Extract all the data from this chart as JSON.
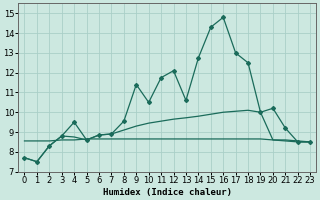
{
  "xlabel": "Humidex (Indice chaleur)",
  "bg_color": "#cce8e0",
  "grid_color": "#aacfc8",
  "line_color": "#1a6b5a",
  "xlim": [
    -0.5,
    23.5
  ],
  "ylim": [
    7,
    15.5
  ],
  "yticks": [
    7,
    8,
    9,
    10,
    11,
    12,
    13,
    14,
    15
  ],
  "xticks": [
    0,
    1,
    2,
    3,
    4,
    5,
    6,
    7,
    8,
    9,
    10,
    11,
    12,
    13,
    14,
    15,
    16,
    17,
    18,
    19,
    20,
    21,
    22,
    23
  ],
  "line1_x": [
    0,
    1,
    2,
    3,
    4,
    5,
    6,
    7,
    8,
    9,
    10,
    11,
    12,
    13,
    14,
    15,
    16,
    17,
    18,
    19,
    20,
    21,
    22,
    23
  ],
  "line1_y": [
    7.7,
    7.5,
    8.3,
    8.8,
    9.5,
    8.6,
    8.85,
    8.9,
    9.55,
    11.4,
    10.5,
    11.75,
    12.1,
    10.6,
    12.75,
    14.3,
    14.8,
    13.0,
    12.5,
    10.0,
    10.2,
    9.2,
    8.5,
    8.5
  ],
  "line2_x": [
    0,
    1,
    2,
    3,
    4,
    5,
    6,
    7,
    8,
    9,
    10,
    11,
    12,
    13,
    14,
    15,
    16,
    17,
    18,
    19,
    20,
    21,
    22,
    23
  ],
  "line2_y": [
    7.7,
    7.5,
    8.3,
    8.8,
    8.75,
    8.6,
    8.85,
    8.9,
    9.1,
    9.3,
    9.45,
    9.55,
    9.65,
    9.72,
    9.8,
    9.9,
    10.0,
    10.05,
    10.1,
    10.0,
    8.6,
    8.55,
    8.5,
    8.5
  ],
  "line3_x": [
    0,
    1,
    2,
    3,
    4,
    5,
    6,
    7,
    8,
    9,
    10,
    11,
    12,
    13,
    14,
    15,
    16,
    17,
    18,
    19,
    20,
    21,
    22,
    23
  ],
  "line3_y": [
    8.55,
    8.55,
    8.55,
    8.6,
    8.6,
    8.65,
    8.65,
    8.65,
    8.65,
    8.65,
    8.65,
    8.65,
    8.65,
    8.65,
    8.65,
    8.65,
    8.65,
    8.65,
    8.65,
    8.65,
    8.6,
    8.6,
    8.55,
    8.5
  ]
}
